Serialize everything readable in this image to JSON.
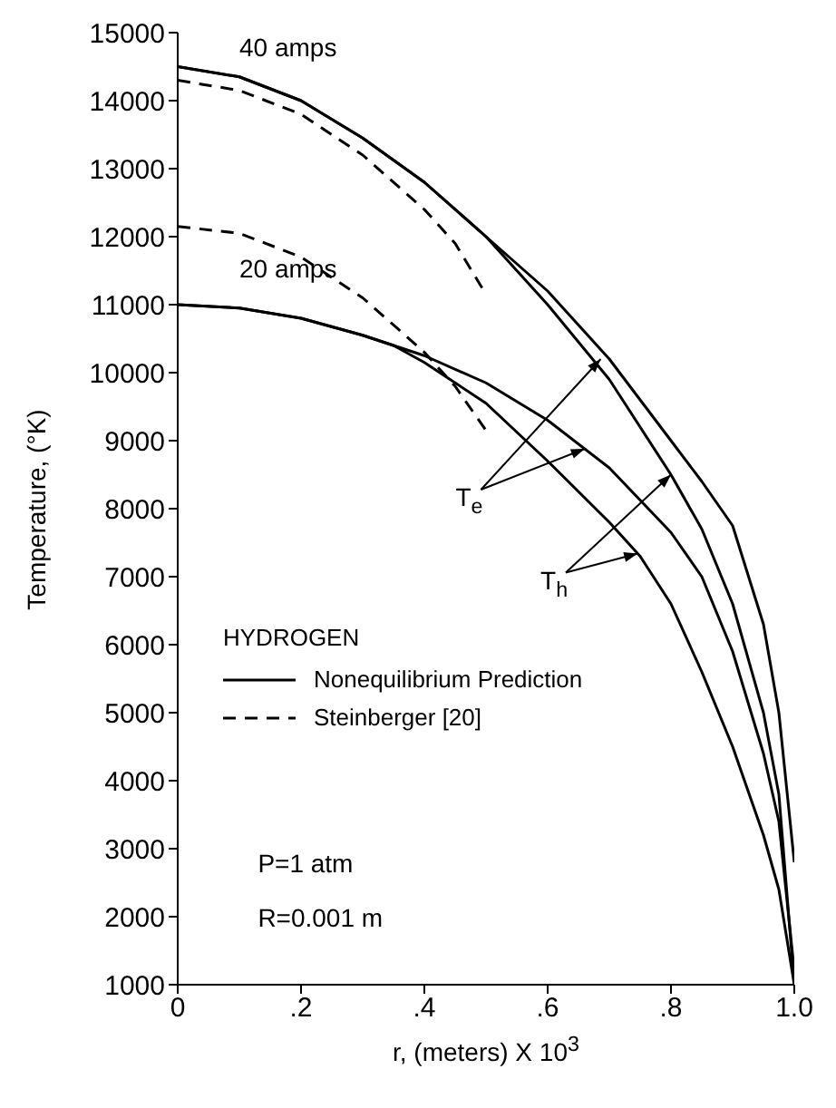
{
  "chart_data": {
    "type": "line",
    "xlabel": "r, (meters) X 10$^{3}$",
    "ylabel": "Temperature, (°K)",
    "legend_title": "HYDROGEN",
    "legend": "left",
    "grid": false,
    "marker": "none",
    "xlim": [
      0,
      1.0
    ],
    "ylim": [
      1000,
      15000
    ],
    "xticks": [
      0,
      {
        "value": 0.2,
        "label": ".2"
      },
      {
        "value": 0.4,
        "label": ".4"
      },
      {
        "value": 0.6,
        "label": ".6"
      },
      {
        "value": 0.8,
        "label": ".8"
      },
      {
        "value": 1.0,
        "label": "1.0"
      }
    ],
    "yticks": [
      1000,
      2000,
      3000,
      4000,
      5000,
      6000,
      7000,
      8000,
      9000,
      10000,
      11000,
      12000,
      13000,
      14000,
      15000
    ],
    "series": [
      {
        "name": "Nonequilibrium Prediction",
        "color": "#000000",
        "line_style": "solid",
        "x": [
          0,
          0.1,
          0.2,
          0.3,
          0.4,
          0.5,
          0.6,
          0.7,
          0.8,
          0.85,
          0.9,
          0.95,
          0.975,
          1.0
        ],
        "values": [
          14500,
          14350,
          14000,
          13450,
          12800,
          12000,
          11200,
          10200,
          9000,
          8400,
          7750,
          6300,
          5000,
          2800
        ]
      },
      {
        "color": "#000000",
        "line_style": "solid",
        "x": [
          0,
          0.1,
          0.2,
          0.3,
          0.4,
          0.5,
          0.6,
          0.7,
          0.8,
          0.85,
          0.9,
          0.95,
          0.975,
          1.0
        ],
        "values": [
          14500,
          14350,
          14000,
          13450,
          12800,
          12000,
          11000,
          9900,
          8500,
          7700,
          6600,
          5000,
          3800,
          1000
        ]
      },
      {
        "color": "#000000",
        "line_style": "solid",
        "x": [
          0,
          0.1,
          0.2,
          0.3,
          0.35,
          0.4,
          0.5,
          0.6,
          0.7,
          0.8,
          0.85,
          0.9,
          0.95,
          0.975,
          1.0
        ],
        "values": [
          11000,
          10950,
          10800,
          10550,
          10400,
          10250,
          9850,
          9300,
          8600,
          7650,
          7000,
          5900,
          4400,
          3400,
          1200
        ]
      },
      {
        "color": "#000000",
        "line_style": "solid",
        "x": [
          0,
          0.1,
          0.2,
          0.3,
          0.35,
          0.4,
          0.5,
          0.6,
          0.7,
          0.75,
          0.8,
          0.85,
          0.9,
          0.95,
          0.975,
          1.0
        ],
        "values": [
          11000,
          10950,
          10800,
          10550,
          10400,
          10150,
          9550,
          8700,
          7800,
          7300,
          6600,
          5600,
          4500,
          3200,
          2400,
          1000
        ]
      },
      {
        "name": "Steinberger [20]",
        "color": "#000000",
        "line_style": "dashed",
        "x": [
          0,
          0.1,
          0.2,
          0.3,
          0.4,
          0.45,
          0.5
        ],
        "values": [
          14300,
          14150,
          13800,
          13200,
          12400,
          11900,
          11150
        ]
      },
      {
        "color": "#000000",
        "line_style": "dashed",
        "x": [
          0,
          0.1,
          0.2,
          0.3,
          0.4,
          0.45,
          0.5
        ],
        "values": [
          12150,
          12050,
          11700,
          11100,
          10300,
          9800,
          9150
        ]
      }
    ],
    "annotations": [
      {
        "text": "40 amps",
        "x": 0.1,
        "y": 14350
      },
      {
        "text": "20 amps",
        "x": 0.1,
        "y": 10950
      },
      {
        "text": "T$_{e}$",
        "x": 0.686,
        "y": 10200
      },
      {
        "text": "T$_{h}$",
        "x": 0.8,
        "y": 8500
      },
      "P=1 atm",
      "R=0.001 m"
    ]
  }
}
